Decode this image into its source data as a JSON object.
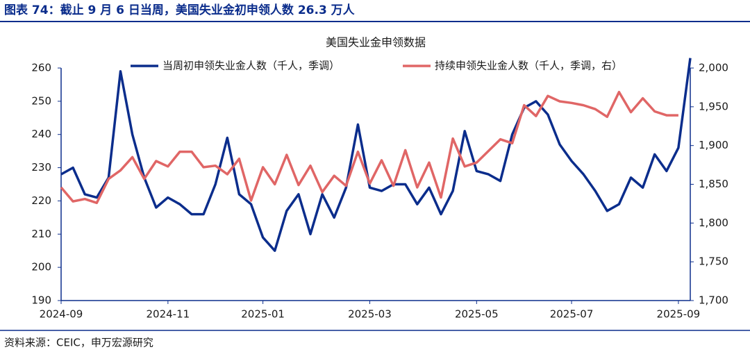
{
  "figure_title": "图表 74：截止 9 月 6 日当周，美国失业金初申领人数 26.3 万人",
  "source": "资料来源：CEIC，申万宏源研究",
  "chart_data": {
    "type": "line",
    "title": "美国失业金申领数据",
    "categories": [
      "2024-09",
      null,
      null,
      null,
      null,
      null,
      null,
      null,
      null,
      "2024-11",
      null,
      null,
      null,
      null,
      null,
      null,
      null,
      "2025-01",
      null,
      null,
      null,
      null,
      null,
      null,
      null,
      null,
      "2025-03",
      null,
      null,
      null,
      null,
      null,
      null,
      null,
      null,
      "2025-05",
      null,
      null,
      null,
      null,
      null,
      null,
      null,
      "2025-07",
      null,
      null,
      null,
      null,
      null,
      null,
      null,
      null,
      "2025-09",
      null
    ],
    "series": [
      {
        "name": "当周初申领失业金人数（千人，季调）",
        "color": "#0b2d8c",
        "axis": "y",
        "values": [
          228,
          230,
          222,
          221,
          227,
          259,
          240,
          227,
          218,
          221,
          219,
          216,
          216,
          225,
          239,
          222,
          219,
          209,
          205,
          217,
          222,
          210,
          222,
          215,
          224,
          243,
          224,
          223,
          225,
          225,
          219,
          224,
          216,
          223,
          241,
          229,
          228,
          226,
          240,
          248,
          250,
          246,
          237,
          232,
          228,
          223,
          217,
          219,
          227,
          224,
          234,
          229,
          236,
          263
        ]
      },
      {
        "name": "持续申领失业金人数（千人，季调，右）",
        "color": "#e06666",
        "axis": "y2",
        "values": [
          1846,
          1828,
          1831,
          1826,
          1857,
          1868,
          1885,
          1857,
          1880,
          1873,
          1892,
          1892,
          1872,
          1874,
          1863,
          1883,
          1829,
          1872,
          1850,
          1888,
          1849,
          1874,
          1840,
          1861,
          1848,
          1892,
          1851,
          1881,
          1848,
          1894,
          1846,
          1878,
          1833,
          1909,
          1873,
          1878,
          1893,
          1908,
          1903,
          1952,
          1938,
          1964,
          1957,
          1955,
          1952,
          1947,
          1937,
          1969,
          1943,
          1961,
          1944,
          1939,
          1939,
          null
        ]
      }
    ],
    "ylim": [
      190,
      260
    ],
    "yticks": [
      190,
      200,
      210,
      220,
      230,
      240,
      250,
      260
    ],
    "y2lim": [
      1700,
      2000
    ],
    "y2ticks": [
      {
        "value": 1700,
        "label": "1,700"
      },
      {
        "value": 1750,
        "label": "1,750"
      },
      {
        "value": 1800,
        "label": "1,800"
      },
      {
        "value": 1850,
        "label": "1,850"
      },
      {
        "value": 1900,
        "label": "1,900"
      },
      {
        "value": 1950,
        "label": "1,950"
      },
      {
        "value": 2000,
        "label": "2,000"
      }
    ],
    "grid": false,
    "legend": "top"
  }
}
